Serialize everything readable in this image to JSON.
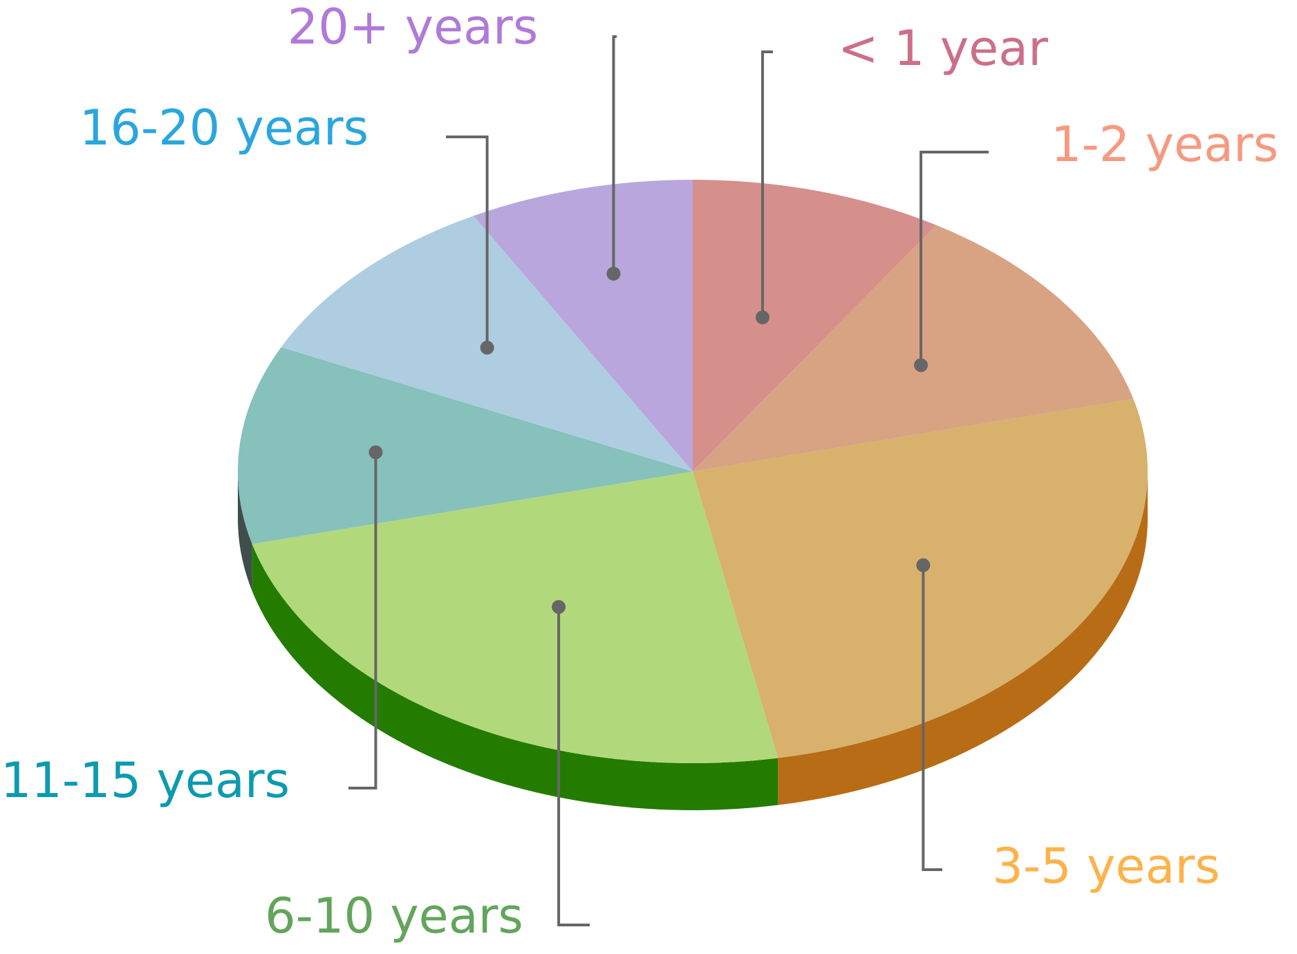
{
  "chart_data": {
    "type": "pie",
    "style": "3d",
    "title": "",
    "label_color_default": "#666666",
    "slices": [
      {
        "label": "< 1 year",
        "value": 9,
        "color": "#d5908c",
        "side_color": "#b06a66",
        "label_color": "#cc6f87"
      },
      {
        "label": "1-2 years",
        "value": 12,
        "color": "#d8a383",
        "side_color": "#b87a58",
        "label_color": "#f59a80"
      },
      {
        "label": "3-5 years",
        "value": 26,
        "color": "#d8b16c",
        "side_color": "#b76c15",
        "label_color": "#fdb24a"
      },
      {
        "label": "6-10 years",
        "value": 24,
        "color": "#b2d87c",
        "side_color": "#237c00",
        "label_color": "#62a55b"
      },
      {
        "label": "11-15 years",
        "value": 11,
        "color": "#86c1bc",
        "side_color": "#3f4d4b",
        "label_color": "#0d9ab0"
      },
      {
        "label": "16-20 years",
        "value": 10,
        "color": "#aecde0",
        "side_color": "#7a98aa",
        "label_color": "#2aa6de"
      },
      {
        "label": "20+ years",
        "value": 8,
        "color": "#b8a6dc",
        "side_color": "#8a74b6",
        "label_color": "#b07ad8"
      }
    ]
  }
}
